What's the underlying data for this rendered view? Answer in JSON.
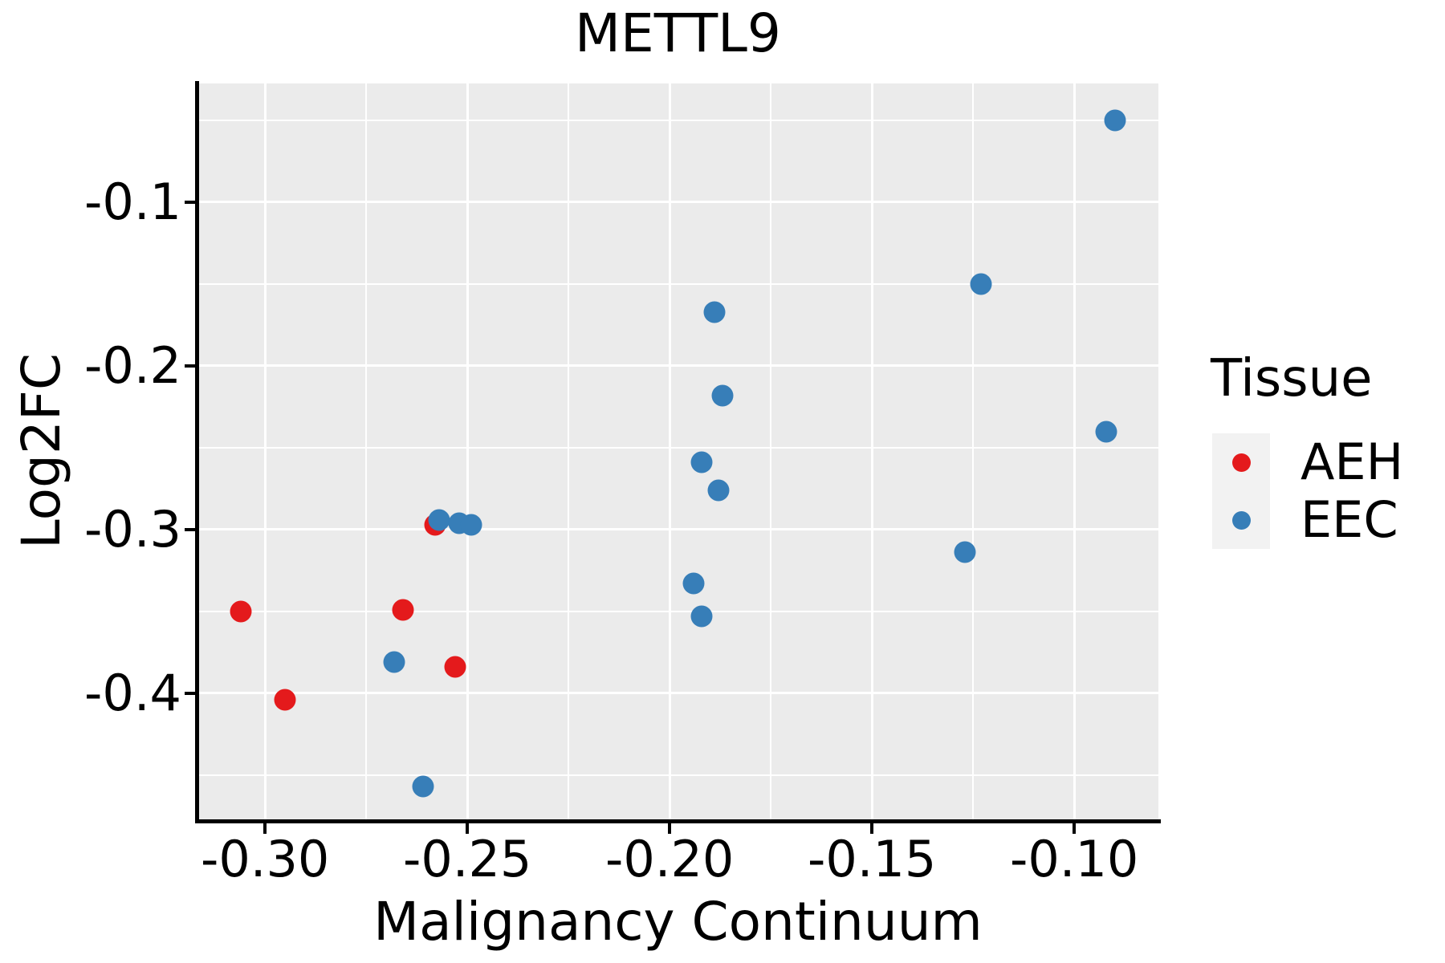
{
  "title": "METTL9",
  "legend": {
    "title": "Tissue",
    "items": [
      {
        "label": "AEH",
        "color": "#E41A1C"
      },
      {
        "label": "EEC",
        "color": "#377EB8"
      }
    ]
  },
  "colors": {
    "panel_bg": "#EBEBEB",
    "gridline": "#FFFFFF",
    "axis_line": "#000000",
    "legend_key_bg": "#F2F2F2",
    "aeh": "#E41A1C",
    "eec": "#377EB8"
  },
  "chart_data": {
    "type": "scatter",
    "title": "METTL9",
    "xlabel": "Malignancy Continuum",
    "ylabel": "Log2FC",
    "xlim": [
      -0.3167,
      -0.0792
    ],
    "ylim": [
      -0.477,
      -0.0275
    ],
    "grid": true,
    "legend_position": "right",
    "x_major_ticks": [
      -0.3,
      -0.25,
      -0.2,
      -0.15,
      -0.1
    ],
    "x_tick_labels": [
      "-0.30",
      "-0.25",
      "-0.20",
      "-0.15",
      "-0.10"
    ],
    "x_minor_gridlines": [
      -0.275,
      -0.225,
      -0.175,
      -0.125
    ],
    "y_major_ticks": [
      -0.1,
      -0.2,
      -0.3,
      -0.4
    ],
    "y_tick_labels": [
      "-0.1",
      "-0.2",
      "-0.3",
      "-0.4"
    ],
    "y_minor_gridlines": [
      -0.05,
      -0.15,
      -0.25,
      -0.35,
      -0.45
    ],
    "series": [
      {
        "name": "AEH",
        "color": "#E41A1C",
        "points": [
          [
            -0.306,
            -0.35
          ],
          [
            -0.295,
            -0.404
          ],
          [
            -0.266,
            -0.349
          ],
          [
            -0.258,
            -0.297
          ],
          [
            -0.253,
            -0.384
          ]
        ]
      },
      {
        "name": "EEC",
        "color": "#377EB8",
        "points": [
          [
            -0.268,
            -0.381
          ],
          [
            -0.261,
            -0.457
          ],
          [
            -0.257,
            -0.294
          ],
          [
            -0.252,
            -0.296
          ],
          [
            -0.249,
            -0.297
          ],
          [
            -0.189,
            -0.167
          ],
          [
            -0.187,
            -0.218
          ],
          [
            -0.192,
            -0.259
          ],
          [
            -0.188,
            -0.276
          ],
          [
            -0.194,
            -0.333
          ],
          [
            -0.192,
            -0.353
          ],
          [
            -0.123,
            -0.15
          ],
          [
            -0.127,
            -0.314
          ],
          [
            -0.092,
            -0.24
          ],
          [
            -0.09,
            -0.05
          ]
        ]
      }
    ]
  }
}
